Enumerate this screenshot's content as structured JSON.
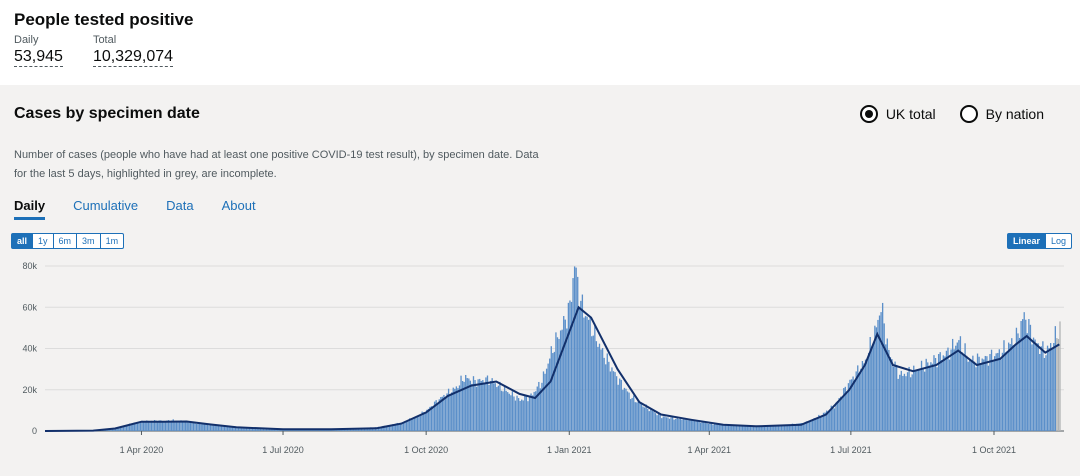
{
  "header": {
    "title": "People tested positive",
    "daily_label": "Daily",
    "daily_value": "53,945",
    "total_label": "Total",
    "total_value": "10,329,074"
  },
  "card": {
    "title": "Cases by specimen date",
    "description": "Number of cases (people who have had at least one positive COVID-19 test result), by specimen date. Data for the last 5 days, highlighted in grey, are incomplete.",
    "radio_uk": "UK total",
    "radio_nation": "By nation",
    "selected_radio": "UK total",
    "tabs": [
      "Daily",
      "Cumulative",
      "Data",
      "About"
    ],
    "active_tab": "Daily",
    "ranges": [
      "all",
      "1y",
      "6m",
      "3m",
      "1m"
    ],
    "active_range": "all",
    "scales": [
      "Linear",
      "Log"
    ],
    "active_scale": "Linear"
  },
  "colors": {
    "bar": "#5b8fc9",
    "avg": "#12306b",
    "incomplete": "#b1b4b6",
    "link": "#1d70b8"
  },
  "chart_data": {
    "type": "bar",
    "x_start": "2020-01-30",
    "x_end": "2021-11-15",
    "ylim": [
      0,
      80000
    ],
    "y_ticks": [
      "0",
      "20k",
      "40k",
      "60k",
      "80k"
    ],
    "y_tick_values": [
      0,
      20000,
      40000,
      60000,
      80000
    ],
    "x_tick_labels": [
      "1 Apr 2020",
      "1 Jul 2020",
      "1 Oct 2020",
      "1 Jan 2021",
      "1 Apr 2021",
      "1 Jul 2021",
      "1 Oct 2021"
    ],
    "x_tick_dates": [
      "2020-04-01",
      "2020-07-01",
      "2020-10-01",
      "2021-01-01",
      "2021-04-01",
      "2021-07-01",
      "2021-10-01"
    ],
    "series": [
      {
        "type": "bar",
        "points": [
          [
            "2020-01-30",
            0
          ],
          [
            "2020-02-20",
            0
          ],
          [
            "2020-03-05",
            200
          ],
          [
            "2020-03-15",
            1200
          ],
          [
            "2020-03-25",
            3500
          ],
          [
            "2020-04-01",
            4500
          ],
          [
            "2020-04-08",
            5000
          ],
          [
            "2020-04-15",
            4800
          ],
          [
            "2020-04-22",
            5200
          ],
          [
            "2020-05-01",
            4300
          ],
          [
            "2020-05-15",
            3000
          ],
          [
            "2020-06-01",
            1800
          ],
          [
            "2020-06-15",
            1200
          ],
          [
            "2020-07-01",
            800
          ],
          [
            "2020-07-20",
            700
          ],
          [
            "2020-08-01",
            900
          ],
          [
            "2020-08-20",
            1200
          ],
          [
            "2020-09-01",
            2000
          ],
          [
            "2020-09-15",
            4000
          ],
          [
            "2020-09-25",
            7000
          ],
          [
            "2020-10-01",
            10000
          ],
          [
            "2020-10-10",
            16000
          ],
          [
            "2020-10-20",
            21000
          ],
          [
            "2020-10-25",
            26000
          ],
          [
            "2020-11-01",
            24000
          ],
          [
            "2020-11-10",
            25000
          ],
          [
            "2020-11-20",
            20000
          ],
          [
            "2020-11-30",
            15000
          ],
          [
            "2020-12-07",
            17000
          ],
          [
            "2020-12-14",
            24000
          ],
          [
            "2020-12-21",
            40000
          ],
          [
            "2020-12-28",
            52000
          ],
          [
            "2021-01-01",
            60000
          ],
          [
            "2021-01-04",
            81000
          ],
          [
            "2021-01-08",
            62000
          ],
          [
            "2021-01-15",
            50000
          ],
          [
            "2021-01-22",
            38000
          ],
          [
            "2021-02-01",
            25000
          ],
          [
            "2021-02-10",
            16000
          ],
          [
            "2021-02-20",
            11000
          ],
          [
            "2021-03-01",
            7000
          ],
          [
            "2021-03-10",
            6000
          ],
          [
            "2021-03-20",
            5500
          ],
          [
            "2021-04-01",
            3500
          ],
          [
            "2021-04-15",
            2800
          ],
          [
            "2021-05-01",
            2300
          ],
          [
            "2021-05-15",
            2400
          ],
          [
            "2021-06-01",
            4000
          ],
          [
            "2021-06-10",
            7000
          ],
          [
            "2021-06-20",
            12000
          ],
          [
            "2021-06-30",
            24000
          ],
          [
            "2021-07-10",
            34000
          ],
          [
            "2021-07-17",
            50000
          ],
          [
            "2021-07-20",
            61000
          ],
          [
            "2021-07-25",
            38000
          ],
          [
            "2021-08-01",
            27000
          ],
          [
            "2021-08-10",
            29000
          ],
          [
            "2021-08-20",
            33000
          ],
          [
            "2021-09-01",
            38000
          ],
          [
            "2021-09-08",
            44000
          ],
          [
            "2021-09-15",
            34000
          ],
          [
            "2021-09-25",
            35000
          ],
          [
            "2021-10-05",
            38000
          ],
          [
            "2021-10-15",
            45000
          ],
          [
            "2021-10-20",
            56000
          ],
          [
            "2021-10-27",
            43000
          ],
          [
            "2021-11-03",
            38000
          ],
          [
            "2021-11-08",
            44000
          ],
          [
            "2021-11-12",
            50000
          ]
        ]
      },
      {
        "type": "line",
        "points": [
          [
            "2020-01-30",
            0
          ],
          [
            "2020-03-01",
            200
          ],
          [
            "2020-03-15",
            1200
          ],
          [
            "2020-04-01",
            4500
          ],
          [
            "2020-04-15",
            4500
          ],
          [
            "2020-04-30",
            4600
          ],
          [
            "2020-05-15",
            3200
          ],
          [
            "2020-06-01",
            1800
          ],
          [
            "2020-07-01",
            800
          ],
          [
            "2020-08-01",
            800
          ],
          [
            "2020-08-30",
            1300
          ],
          [
            "2020-09-15",
            3600
          ],
          [
            "2020-10-01",
            9000
          ],
          [
            "2020-10-15",
            17000
          ],
          [
            "2020-10-30",
            22000
          ],
          [
            "2020-11-15",
            24000
          ],
          [
            "2020-11-30",
            18000
          ],
          [
            "2020-12-10",
            16000
          ],
          [
            "2020-12-20",
            24000
          ],
          [
            "2021-01-01",
            48000
          ],
          [
            "2021-01-07",
            60000
          ],
          [
            "2021-01-15",
            55000
          ],
          [
            "2021-02-01",
            30000
          ],
          [
            "2021-02-15",
            14000
          ],
          [
            "2021-03-01",
            8000
          ],
          [
            "2021-03-20",
            5500
          ],
          [
            "2021-04-10",
            3000
          ],
          [
            "2021-05-01",
            2300
          ],
          [
            "2021-05-30",
            3000
          ],
          [
            "2021-06-15",
            8000
          ],
          [
            "2021-06-30",
            20000
          ],
          [
            "2021-07-10",
            32000
          ],
          [
            "2021-07-18",
            47000
          ],
          [
            "2021-07-28",
            32000
          ],
          [
            "2021-08-10",
            29000
          ],
          [
            "2021-08-25",
            32000
          ],
          [
            "2021-09-08",
            39000
          ],
          [
            "2021-09-20",
            32000
          ],
          [
            "2021-10-05",
            35000
          ],
          [
            "2021-10-15",
            42000
          ],
          [
            "2021-10-22",
            46000
          ],
          [
            "2021-11-03",
            38000
          ],
          [
            "2021-11-12",
            42000
          ]
        ]
      }
    ],
    "incomplete_from": "2021-11-10"
  }
}
